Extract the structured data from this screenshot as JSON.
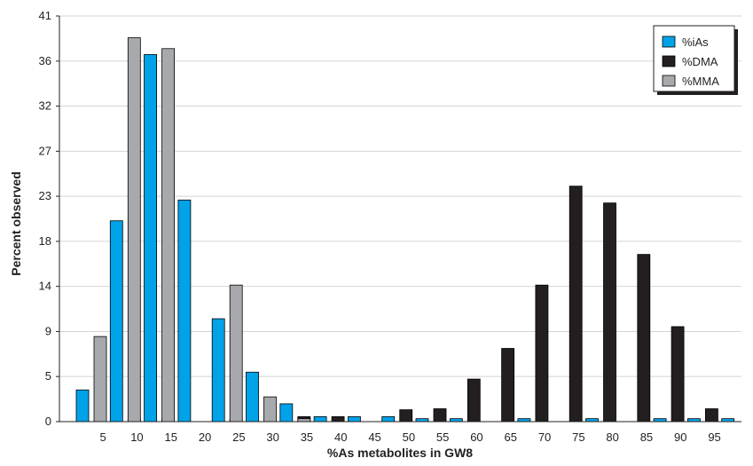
{
  "chart_data": {
    "type": "bar",
    "xlabel": "%As metabolites in GW8",
    "ylabel": "Percent observed",
    "yticks": [
      "0",
      "5",
      "9",
      "14",
      "18",
      "23",
      "27",
      "32",
      "36",
      "41"
    ],
    "ytick_values": [
      0,
      4.56,
      9.11,
      13.67,
      18.22,
      22.78,
      27.33,
      31.89,
      36.44,
      41
    ],
    "ylim": [
      0,
      41
    ],
    "xtick_labels": [
      "5",
      "10",
      "15",
      "20",
      "25",
      "30",
      "35",
      "40",
      "45",
      "50",
      "55",
      "60",
      "65",
      "70",
      "75",
      "80",
      "85",
      "90",
      "95"
    ],
    "bins": 20,
    "legend": {
      "position": "top-right"
    },
    "series": [
      {
        "name": "%iAs",
        "color": "#00a2e8",
        "values": [
          3.2,
          20.3,
          37.1,
          22.4,
          10.4,
          5.0,
          1.8,
          0.5,
          0.5,
          0.5,
          0.3,
          0.3,
          0,
          0.3,
          0,
          0.3,
          0,
          0.3,
          0.3,
          0.3
        ]
      },
      {
        "name": "%DMA",
        "color": "#231f20",
        "values": [
          0,
          0.3,
          0.3,
          0,
          0.3,
          0,
          0.5,
          0.5,
          0,
          1.2,
          1.3,
          4.3,
          7.4,
          13.8,
          23.8,
          22.1,
          16.9,
          9.6,
          1.3,
          0
        ]
      },
      {
        "name": "%MMA",
        "color": "#a7a9ac",
        "values": [
          8.6,
          38.8,
          37.7,
          0,
          13.8,
          2.5,
          0.3,
          0,
          0,
          0,
          0,
          0,
          0,
          0,
          0,
          0,
          0,
          0,
          0,
          0
        ]
      }
    ]
  }
}
